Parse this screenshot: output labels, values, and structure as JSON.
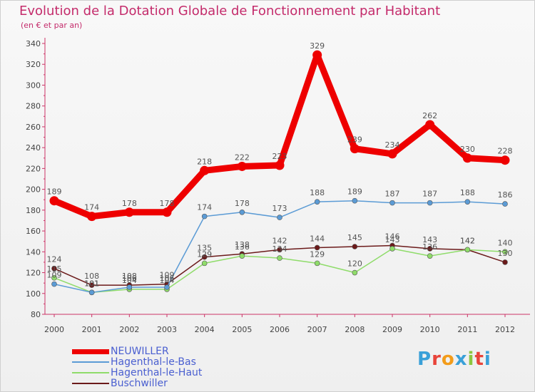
{
  "header": {
    "title": "Evolution de la Dotation Globale de Fonctionnement par Habitant",
    "subtitle": "(en € et par an)"
  },
  "logo": {
    "text": "Proxiti",
    "letter_colors": [
      "#3aa0d8",
      "#e8443a",
      "#f39c1a",
      "#3aa0d8",
      "#8cc63f",
      "#e8443a",
      "#3aa0d8"
    ]
  },
  "chart_data": {
    "type": "line",
    "title": "Evolution de la Dotation Globale de Fonctionnement par Habitant",
    "subtitle": "(en € et par an)",
    "x": [
      "2000",
      "2001",
      "2002",
      "2003",
      "2004",
      "2005",
      "2006",
      "2007",
      "2008",
      "2009",
      "2010",
      "2011",
      "2012"
    ],
    "ylim": [
      80,
      340
    ],
    "yticks": [
      80,
      100,
      120,
      140,
      160,
      180,
      200,
      220,
      240,
      260,
      280,
      300,
      320,
      340
    ],
    "grid": false,
    "legend_position": "bottom-left",
    "series": [
      {
        "name": "NEUWILLER",
        "color": "#ee0000",
        "values": [
          189,
          174,
          178,
          178,
          218,
          222,
          223,
          329,
          239,
          234,
          262,
          230,
          228
        ],
        "labels": [
          "189",
          "174",
          "178",
          "178",
          "218",
          "222",
          "223",
          "329",
          "239",
          "234",
          "262",
          "230",
          "228"
        ]
      },
      {
        "name": "Hagenthal-le-Bas",
        "color": "#5b9bd5",
        "values": [
          109,
          101,
          106,
          106,
          174,
          178,
          173,
          188,
          189,
          187,
          187,
          188,
          186
        ],
        "labels": [
          "109",
          "101",
          "106",
          "106",
          "174",
          "178",
          "173",
          "188",
          "189",
          "187",
          "187",
          "188",
          "186"
        ]
      },
      {
        "name": "Hagenthal-le-Haut",
        "color": "#8fdc6a",
        "values": [
          115,
          101,
          104,
          104,
          129,
          136,
          134,
          129,
          120,
          143,
          136,
          142,
          140
        ],
        "labels": [
          "115",
          "101",
          "104",
          "104",
          "129",
          "136",
          "134",
          "129",
          "120",
          "143",
          "136",
          "142",
          "140"
        ]
      },
      {
        "name": "Buschwiller",
        "color": "#6b1a1a",
        "values": [
          124,
          108,
          108,
          109,
          135,
          138,
          142,
          144,
          145,
          146,
          143,
          142,
          130
        ],
        "labels": [
          "124",
          "108",
          "108",
          "109",
          "135",
          "138",
          "142",
          "144",
          "145",
          "146",
          "143",
          "142",
          "130"
        ]
      }
    ]
  }
}
